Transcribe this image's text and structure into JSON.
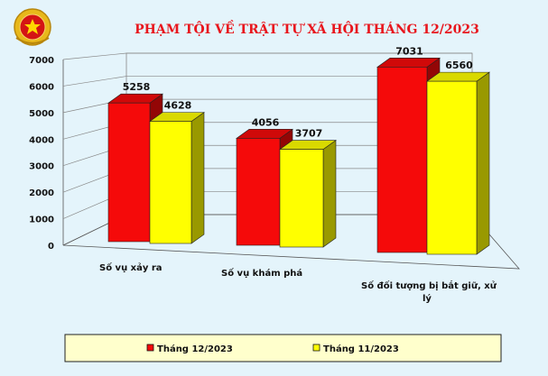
{
  "chart_data": {
    "type": "bar",
    "title": "PHẠM TỘI VỀ TRẬT TỰ XÃ HỘI THÁNG 12/2023",
    "categories": [
      "Số vụ xảy ra",
      "Số vụ khám phá",
      "Số đối tượng bị bắt giữ, xử lý"
    ],
    "categoryLines": [
      [
        "Số vụ xảy ra"
      ],
      [
        "Số vụ khám phá"
      ],
      [
        "Số đối tượng bị bắt giữ, xử",
        "lý"
      ]
    ],
    "series": [
      {
        "name": "Tháng 12/2023",
        "values": [
          5258,
          4056,
          7031
        ],
        "color": "#f50a0a"
      },
      {
        "name": "Tháng 11/2023",
        "values": [
          4628,
          3707,
          6560
        ],
        "color": "#ffff00"
      }
    ],
    "yticks": [
      0,
      1000,
      2000,
      3000,
      4000,
      5000,
      6000,
      7000
    ],
    "ylim": [
      0,
      7000
    ],
    "grid": true,
    "legend_position": "bottom"
  },
  "colors": {
    "background": "#e4f4fb",
    "title": "#e8161d",
    "legend_box": "#ffffcc"
  },
  "logo": {
    "icon": "police-emblem-icon"
  }
}
